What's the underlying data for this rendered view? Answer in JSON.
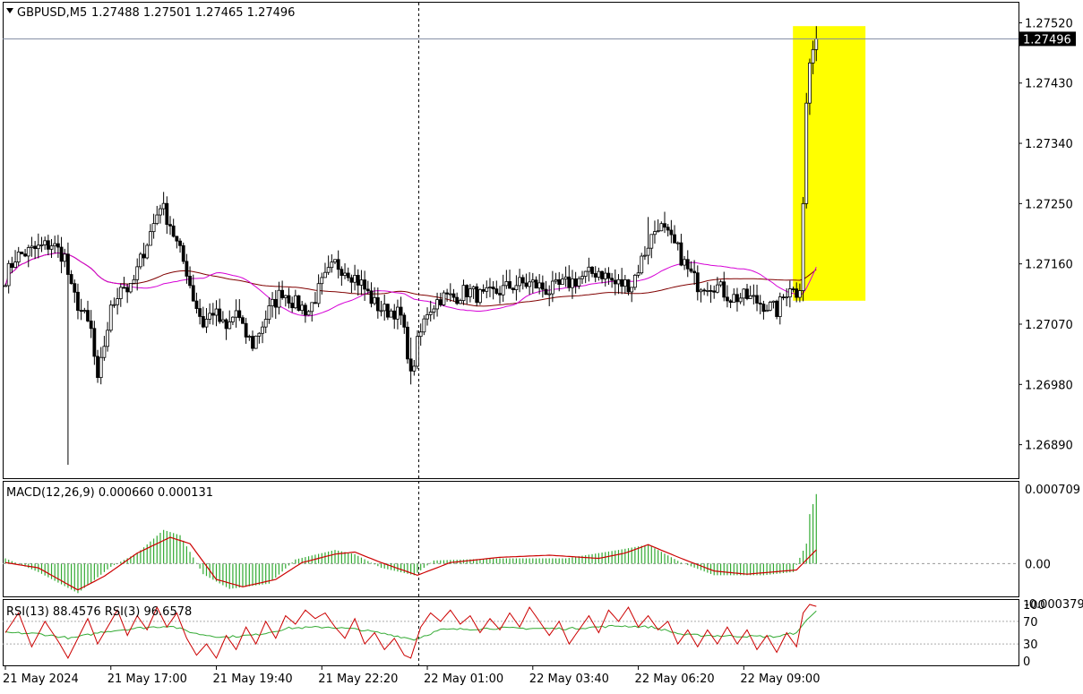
{
  "header": {
    "symbol_tf": "GBPUSD,M5",
    "ohlc": "1.27488 1.27501 1.27465 1.27496"
  },
  "colors": {
    "background": "#ffffff",
    "candle": "#000000",
    "ma_fast": "#d600d6",
    "ma_slow": "#800000",
    "macd_hist": "#33aa33",
    "macd_signal": "#cc0000",
    "rsi13": "#33aa33",
    "rsi3": "#cc0000",
    "highlight": "#ffff00",
    "price_tag": "#000000"
  },
  "chart_data": [
    {
      "type": "candlestick",
      "symbol": "GBPUSD",
      "timeframe": "M5",
      "ylim": [
        1.2684,
        1.2755
      ],
      "y_ticks": [
        "1.27520",
        "1.27430",
        "1.27340",
        "1.27250",
        "1.27160",
        "1.27070",
        "1.26980",
        "1.26890"
      ],
      "current_price": "1.27496",
      "current_value": 1.27496,
      "x_ticks": [
        "21 May 2024",
        "21 May 17:00",
        "21 May 19:40",
        "21 May 22:20",
        "22 May 01:00",
        "22 May 03:40",
        "22 May 06:20",
        "22 May 09:00"
      ],
      "highlight_price_range": [
        1.27105,
        1.27515
      ],
      "close_path": [
        [
          0,
          1.2714
        ],
        [
          3,
          1.2717
        ],
        [
          8,
          1.2718
        ],
        [
          14,
          1.2719
        ],
        [
          18,
          1.2717
        ],
        [
          20,
          1.2712
        ],
        [
          24,
          1.2708
        ],
        [
          26,
          1.2706
        ],
        [
          28,
          1.2698
        ],
        [
          30,
          1.2704
        ],
        [
          32,
          1.2709
        ],
        [
          35,
          1.2713
        ],
        [
          38,
          1.2712
        ],
        [
          42,
          1.2718
        ],
        [
          45,
          1.2722
        ],
        [
          47,
          1.2725
        ],
        [
          50,
          1.2722
        ],
        [
          52,
          1.2719
        ],
        [
          55,
          1.2715
        ],
        [
          57,
          1.2711
        ],
        [
          60,
          1.2707
        ],
        [
          63,
          1.2709
        ],
        [
          67,
          1.2706
        ],
        [
          70,
          1.2709
        ],
        [
          72,
          1.2706
        ],
        [
          75,
          1.2704
        ],
        [
          78,
          1.2707
        ],
        [
          80,
          1.2709
        ],
        [
          84,
          1.2712
        ],
        [
          88,
          1.271
        ],
        [
          92,
          1.2709
        ],
        [
          96,
          1.2713
        ],
        [
          100,
          1.2716
        ],
        [
          104,
          1.2715
        ],
        [
          108,
          1.2713
        ],
        [
          112,
          1.271
        ],
        [
          115,
          1.2709
        ],
        [
          118,
          1.2709
        ],
        [
          120,
          1.2708
        ],
        [
          122,
          1.2703
        ],
        [
          123,
          1.2699
        ],
        [
          125,
          1.2704
        ],
        [
          128,
          1.2709
        ],
        [
          132,
          1.2711
        ],
        [
          136,
          1.2711
        ],
        [
          140,
          1.2712
        ],
        [
          145,
          1.2711
        ],
        [
          150,
          1.2712
        ],
        [
          155,
          1.2713
        ],
        [
          160,
          1.2713
        ],
        [
          165,
          1.2712
        ],
        [
          170,
          1.2713
        ],
        [
          175,
          1.2714
        ],
        [
          180,
          1.2715
        ],
        [
          185,
          1.2713
        ],
        [
          190,
          1.2713
        ],
        [
          195,
          1.2719
        ],
        [
          198,
          1.2722
        ],
        [
          201,
          1.272
        ],
        [
          204,
          1.2718
        ],
        [
          207,
          1.2715
        ],
        [
          210,
          1.2713
        ],
        [
          215,
          1.2713
        ],
        [
          220,
          1.2711
        ],
        [
          225,
          1.2711
        ],
        [
          230,
          1.271
        ],
        [
          234,
          1.2709
        ],
        [
          236,
          1.2711
        ],
        [
          238,
          1.2713
        ],
        [
          240,
          1.2711
        ],
        [
          241,
          1.2712
        ],
        [
          242,
          1.2725
        ],
        [
          243,
          1.274
        ],
        [
          244,
          1.2746
        ],
        [
          245,
          1.2748
        ],
        [
          246,
          1.27496
        ]
      ],
      "anomalies": [
        {
          "i": 19,
          "low": 1.2686,
          "high": 1.2718
        },
        {
          "i": 123,
          "low": 1.2698,
          "high": 1.2705
        },
        {
          "i": 195,
          "low": 1.2717,
          "high": 1.2723
        },
        {
          "i": 246,
          "low": 1.27465,
          "high": 1.27515
        }
      ]
    },
    {
      "type": "macd",
      "label": "MACD(12,26,9) 0.000660 0.000131",
      "params": [
        12,
        26,
        9
      ],
      "ylim": [
        -0.000379,
        0.000709
      ],
      "y_ticks": [
        "0.000709",
        "0.00",
        "-0.000379"
      ],
      "signal_path": [
        [
          0,
          1e-05
        ],
        [
          10,
          -4e-05
        ],
        [
          22,
          -0.00025
        ],
        [
          30,
          -0.00012
        ],
        [
          40,
          0.0001
        ],
        [
          50,
          0.00025
        ],
        [
          56,
          0.00019
        ],
        [
          64,
          -0.00015
        ],
        [
          72,
          -0.00022
        ],
        [
          82,
          -0.00015
        ],
        [
          90,
          1e-05
        ],
        [
          100,
          9e-05
        ],
        [
          106,
          0.00011
        ],
        [
          114,
          1e-05
        ],
        [
          125,
          -0.00011
        ],
        [
          135,
          1e-05
        ],
        [
          150,
          6e-05
        ],
        [
          165,
          8e-05
        ],
        [
          180,
          5e-05
        ],
        [
          188,
          0.0001
        ],
        [
          195,
          0.00018
        ],
        [
          205,
          5e-05
        ],
        [
          215,
          -7e-05
        ],
        [
          225,
          -0.0001
        ],
        [
          240,
          -6e-05
        ],
        [
          246,
          0.000131
        ]
      ],
      "hist_path": [
        [
          0,
          5e-05
        ],
        [
          10,
          -8e-05
        ],
        [
          22,
          -0.00028
        ],
        [
          32,
          -3e-05
        ],
        [
          40,
          0.0001
        ],
        [
          48,
          0.00032
        ],
        [
          53,
          0.00027
        ],
        [
          60,
          -0.0001
        ],
        [
          68,
          -0.00024
        ],
        [
          80,
          -0.00019
        ],
        [
          88,
          4e-05
        ],
        [
          100,
          0.00013
        ],
        [
          106,
          9e-05
        ],
        [
          114,
          -4e-05
        ],
        [
          124,
          -0.00011
        ],
        [
          130,
          3e-05
        ],
        [
          150,
          5e-05
        ],
        [
          170,
          5e-05
        ],
        [
          186,
          0.00013
        ],
        [
          195,
          0.00018
        ],
        [
          205,
          1e-05
        ],
        [
          215,
          -0.00011
        ],
        [
          230,
          -0.00011
        ],
        [
          239,
          -8e-05
        ],
        [
          243,
          0.00019
        ],
        [
          244,
          0.00047
        ],
        [
          246,
          0.00066
        ]
      ]
    },
    {
      "type": "rsi",
      "label": "RSI(13) 88.4576  RSI(3) 96.6578",
      "ylim": [
        0,
        100
      ],
      "y_ticks": [
        "100",
        "70",
        "30",
        "0"
      ],
      "levels": [
        70,
        30
      ],
      "rsi13_path": [
        [
          0,
          50
        ],
        [
          10,
          48
        ],
        [
          20,
          40
        ],
        [
          30,
          52
        ],
        [
          40,
          58
        ],
        [
          50,
          62
        ],
        [
          58,
          48
        ],
        [
          66,
          42
        ],
        [
          76,
          46
        ],
        [
          86,
          58
        ],
        [
          98,
          60
        ],
        [
          108,
          55
        ],
        [
          118,
          45
        ],
        [
          124,
          38
        ],
        [
          132,
          55
        ],
        [
          150,
          58
        ],
        [
          170,
          57
        ],
        [
          186,
          62
        ],
        [
          196,
          60
        ],
        [
          206,
          46
        ],
        [
          220,
          44
        ],
        [
          234,
          43
        ],
        [
          240,
          50
        ],
        [
          243,
          72
        ],
        [
          246,
          88.4576
        ]
      ],
      "rsi3_path": [
        [
          0,
          50
        ],
        [
          4,
          85
        ],
        [
          8,
          25
        ],
        [
          12,
          70
        ],
        [
          16,
          35
        ],
        [
          19,
          5
        ],
        [
          22,
          40
        ],
        [
          25,
          75
        ],
        [
          28,
          30
        ],
        [
          31,
          60
        ],
        [
          34,
          90
        ],
        [
          37,
          45
        ],
        [
          40,
          80
        ],
        [
          43,
          55
        ],
        [
          46,
          95
        ],
        [
          49,
          60
        ],
        [
          52,
          85
        ],
        [
          55,
          40
        ],
        [
          58,
          10
        ],
        [
          61,
          30
        ],
        [
          64,
          5
        ],
        [
          67,
          45
        ],
        [
          70,
          20
        ],
        [
          73,
          60
        ],
        [
          76,
          30
        ],
        [
          79,
          70
        ],
        [
          82,
          40
        ],
        [
          85,
          80
        ],
        [
          88,
          65
        ],
        [
          91,
          90
        ],
        [
          94,
          75
        ],
        [
          97,
          85
        ],
        [
          100,
          60
        ],
        [
          103,
          40
        ],
        [
          106,
          75
        ],
        [
          109,
          30
        ],
        [
          112,
          50
        ],
        [
          115,
          20
        ],
        [
          118,
          40
        ],
        [
          121,
          10
        ],
        [
          123,
          5
        ],
        [
          126,
          60
        ],
        [
          129,
          85
        ],
        [
          132,
          70
        ],
        [
          135,
          90
        ],
        [
          138,
          65
        ],
        [
          141,
          80
        ],
        [
          144,
          50
        ],
        [
          147,
          75
        ],
        [
          150,
          55
        ],
        [
          153,
          85
        ],
        [
          156,
          60
        ],
        [
          159,
          95
        ],
        [
          162,
          70
        ],
        [
          165,
          45
        ],
        [
          168,
          70
        ],
        [
          171,
          30
        ],
        [
          174,
          55
        ],
        [
          177,
          80
        ],
        [
          180,
          50
        ],
        [
          183,
          90
        ],
        [
          186,
          70
        ],
        [
          189,
          95
        ],
        [
          192,
          60
        ],
        [
          195,
          80
        ],
        [
          198,
          55
        ],
        [
          201,
          70
        ],
        [
          204,
          30
        ],
        [
          207,
          55
        ],
        [
          210,
          25
        ],
        [
          213,
          55
        ],
        [
          216,
          30
        ],
        [
          219,
          60
        ],
        [
          222,
          30
        ],
        [
          225,
          55
        ],
        [
          228,
          20
        ],
        [
          231,
          45
        ],
        [
          234,
          15
        ],
        [
          237,
          50
        ],
        [
          240,
          25
        ],
        [
          242,
          85
        ],
        [
          244,
          100
        ],
        [
          246,
          96.6578
        ]
      ]
    }
  ]
}
